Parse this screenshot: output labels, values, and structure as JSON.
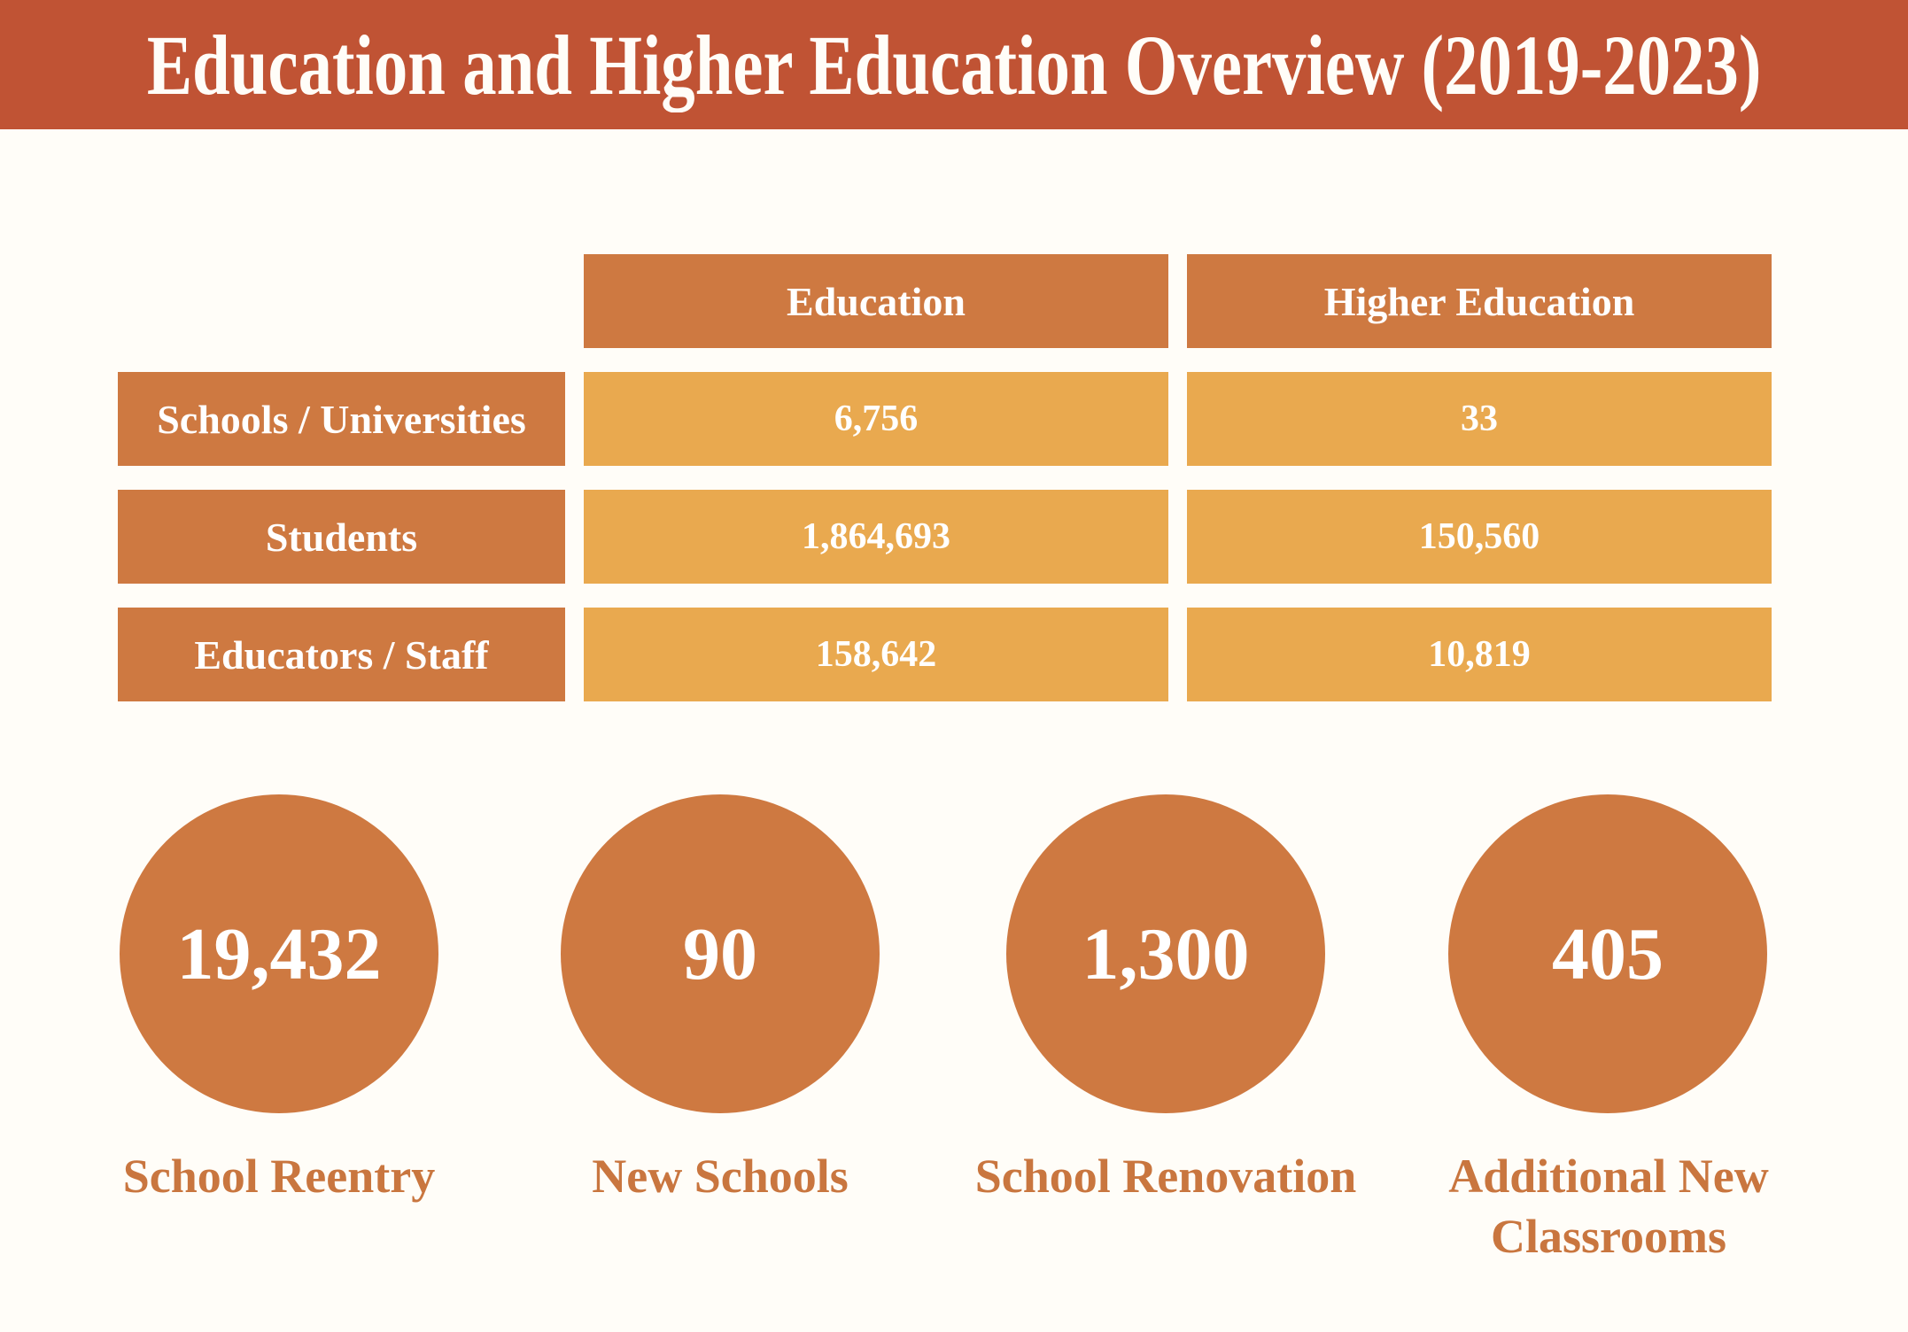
{
  "title": "Education and Higher Education Overview (2019-2023)",
  "colors": {
    "title_bar_bg": "#C05334",
    "table_header_bg": "#CE7941",
    "table_value_bg": "#E9A94F",
    "circle_bg": "#CE7941",
    "footer_label_text": "#C9763F",
    "text_on_fill": "#FFFFFF",
    "page_bg": "#FFFDF8"
  },
  "table": {
    "column_headers": [
      "Education",
      "Higher Education"
    ],
    "rows": [
      {
        "label": "Schools / Universities",
        "education": "6,756",
        "higher_education": "33"
      },
      {
        "label": "Students",
        "education": "1,864,693",
        "higher_education": "150,560"
      },
      {
        "label": "Educators / Staff",
        "education": "158,642",
        "higher_education": "10,819"
      }
    ]
  },
  "stats": [
    {
      "value": "19,432",
      "label": "School Reentry"
    },
    {
      "value": "90",
      "label": "New Schools"
    },
    {
      "value": "1,300",
      "label": "School Renovation"
    },
    {
      "value": "405",
      "label": "Additional New Classrooms"
    }
  ],
  "chart_data": {
    "type": "table",
    "title": "Education and Higher Education Overview (2019-2023)",
    "columns": [
      "Education",
      "Higher Education"
    ],
    "row_labels": [
      "Schools / Universities",
      "Students",
      "Educators / Staff"
    ],
    "values": [
      [
        6756,
        33
      ],
      [
        1864693,
        150560
      ],
      [
        158642,
        10819
      ]
    ],
    "stat_circles": [
      {
        "label": "School Reentry",
        "value": 19432
      },
      {
        "label": "New Schools",
        "value": 90
      },
      {
        "label": "School Renovation",
        "value": 1300
      },
      {
        "label": "Additional New Classrooms",
        "value": 405
      }
    ],
    "legend_position": "none",
    "grid": false
  }
}
